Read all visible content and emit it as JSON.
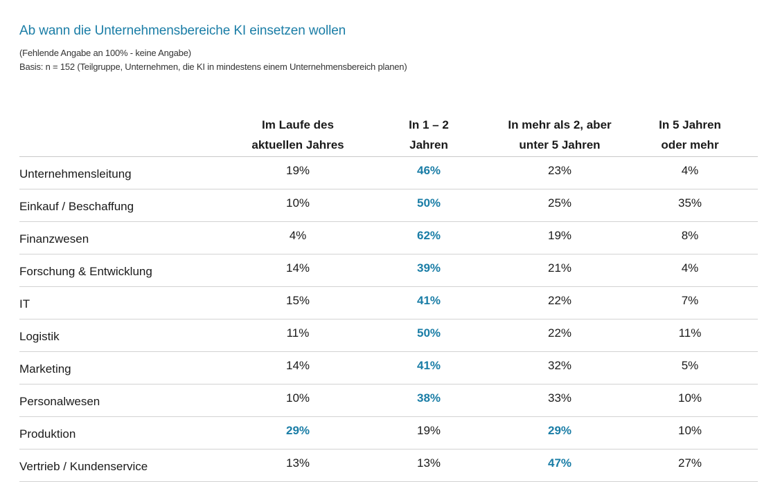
{
  "header": {
    "title": "Ab wann die Unternehmensbereiche KI einsetzen wollen",
    "note": "(Fehlende Angabe an 100% - keine Angabe)",
    "basis": "Basis: n = 152 (Teilgruppe, Unternehmen, die KI in mindestens einem Unternehmensbereich planen)"
  },
  "colors": {
    "accent": "#1a7da6",
    "text": "#1a1a1a",
    "rule": "#d2d2d2"
  },
  "columns": [
    {
      "line1": "Im Laufe des",
      "line2": "aktuellen Jahres"
    },
    {
      "line1": "In 1 – 2",
      "line2": "Jahren"
    },
    {
      "line1": "In mehr als 2, aber",
      "line2": "unter 5 Jahren"
    },
    {
      "line1": "In 5 Jahren",
      "line2": "oder mehr"
    }
  ],
  "rows": [
    {
      "label": "Unternehmensleitung",
      "values": [
        "19%",
        "46%",
        "23%",
        "4%"
      ],
      "highlight": [
        1
      ]
    },
    {
      "label": "Einkauf / Beschaffung",
      "values": [
        "10%",
        "50%",
        "25%",
        "35%"
      ],
      "highlight": [
        1
      ]
    },
    {
      "label": "Finanzwesen",
      "values": [
        "4%",
        "62%",
        "19%",
        "8%"
      ],
      "highlight": [
        1
      ]
    },
    {
      "label": "Forschung & Entwicklung",
      "values": [
        "14%",
        "39%",
        "21%",
        "4%"
      ],
      "highlight": [
        1
      ]
    },
    {
      "label": "IT",
      "values": [
        "15%",
        "41%",
        "22%",
        "7%"
      ],
      "highlight": [
        1
      ]
    },
    {
      "label": "Logistik",
      "values": [
        "11%",
        "50%",
        "22%",
        "11%"
      ],
      "highlight": [
        1
      ]
    },
    {
      "label": "Marketing",
      "values": [
        "14%",
        "41%",
        "32%",
        "5%"
      ],
      "highlight": [
        1
      ]
    },
    {
      "label": "Personalwesen",
      "values": [
        "10%",
        "38%",
        "33%",
        "10%"
      ],
      "highlight": [
        1
      ]
    },
    {
      "label": "Produktion",
      "values": [
        "29%",
        "19%",
        "29%",
        "10%"
      ],
      "highlight": [
        0,
        2
      ]
    },
    {
      "label": "Vertrieb / Kundenservice",
      "values": [
        "13%",
        "13%",
        "47%",
        "27%"
      ],
      "highlight": [
        2
      ]
    }
  ],
  "chart_data": {
    "type": "table",
    "title": "Ab wann die Unternehmensbereiche KI einsetzen wollen",
    "subtitle": "(Fehlende Angabe an 100% - keine Angabe) Basis: n = 152 (Teilgruppe, Unternehmen, die KI in mindestens einem Unternehmensbereich planen)",
    "columns": [
      "Im Laufe des aktuellen Jahres",
      "In 1 – 2 Jahren",
      "In mehr als 2, aber unter 5 Jahren",
      "In 5 Jahren oder mehr"
    ],
    "categories": [
      "Unternehmensleitung",
      "Einkauf / Beschaffung",
      "Finanzwesen",
      "Forschung & Entwicklung",
      "IT",
      "Logistik",
      "Marketing",
      "Personalwesen",
      "Produktion",
      "Vertrieb / Kundenservice"
    ],
    "unit": "%",
    "series": [
      {
        "name": "Im Laufe des aktuellen Jahres",
        "values": [
          19,
          10,
          4,
          14,
          15,
          11,
          14,
          10,
          29,
          13
        ]
      },
      {
        "name": "In 1 – 2 Jahren",
        "values": [
          46,
          50,
          62,
          39,
          41,
          50,
          41,
          38,
          19,
          13
        ]
      },
      {
        "name": "In mehr als 2, aber unter 5 Jahren",
        "values": [
          23,
          25,
          19,
          21,
          22,
          22,
          32,
          33,
          29,
          47
        ]
      },
      {
        "name": "In 5 Jahren oder mehr",
        "values": [
          4,
          35,
          8,
          4,
          7,
          11,
          5,
          10,
          10,
          27
        ]
      }
    ]
  }
}
